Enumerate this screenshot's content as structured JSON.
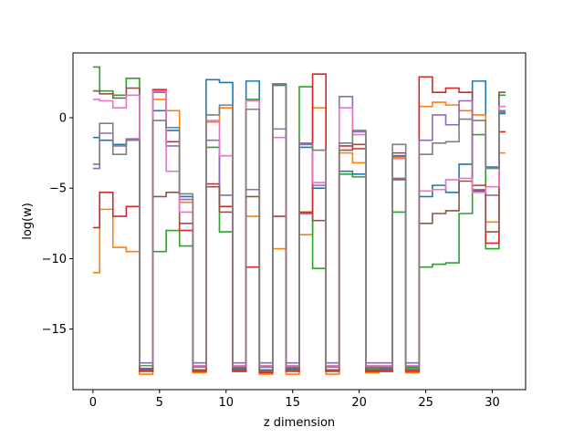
{
  "chart_data": {
    "type": "line",
    "drawstyle": "steps-mid",
    "title": "",
    "xlabel": "z dimension",
    "ylabel": "log(w)",
    "xlim": [
      -1.5,
      32.5
    ],
    "ylim": [
      -19.3,
      4.6
    ],
    "xticks": [
      0,
      5,
      10,
      15,
      20,
      25,
      30
    ],
    "yticks": [
      -15,
      -10,
      -5,
      0
    ],
    "ytick_labels": [
      "−15",
      "−10",
      "−5",
      "0"
    ],
    "grid": false,
    "legend": "none",
    "x": [
      0,
      1,
      2,
      3,
      4,
      5,
      6,
      7,
      8,
      9,
      10,
      11,
      12,
      13,
      14,
      15,
      16,
      17,
      18,
      19,
      20,
      21,
      22,
      23,
      24,
      25,
      26,
      27,
      28,
      29,
      30,
      31
    ],
    "series": [
      {
        "color": "#1f77b4",
        "values": [
          -1.4,
          -1.6,
          -1.9,
          -1.6,
          -17.8,
          0.5,
          -0.9,
          -5.6,
          -17.9,
          2.7,
          2.5,
          -17.8,
          2.6,
          -17.9,
          2.3,
          -17.8,
          -2.1,
          -5.0,
          -17.9,
          -3.8,
          -4.0,
          -18.0,
          -17.8,
          -2.7,
          -17.8,
          -5.6,
          -4.8,
          -5.3,
          -3.3,
          2.6,
          -3.5,
          0.3
        ]
      },
      {
        "color": "#ff7f0e",
        "values": [
          -11.0,
          -6.5,
          -9.2,
          -9.5,
          -18.2,
          1.3,
          0.5,
          -6.0,
          -18.1,
          -0.3,
          0.7,
          -18.0,
          -7.0,
          -18.2,
          -9.3,
          -18.2,
          -8.3,
          0.7,
          -18.2,
          -2.5,
          -3.2,
          -18.1,
          -18.0,
          -2.8,
          -18.1,
          0.8,
          1.1,
          0.9,
          0.5,
          0.2,
          -7.4,
          -2.5
        ]
      },
      {
        "color": "#2ca02c",
        "values": [
          3.6,
          1.9,
          1.6,
          2.8,
          -17.6,
          -9.5,
          -8.0,
          -9.1,
          -17.6,
          -2.1,
          -8.1,
          -17.7,
          1.3,
          -17.7,
          2.3,
          -17.6,
          2.2,
          -10.7,
          -17.6,
          -4.0,
          -4.2,
          -17.8,
          -17.6,
          -6.7,
          -17.7,
          -10.6,
          -10.4,
          -10.3,
          -6.8,
          -1.2,
          -9.3,
          1.6
        ]
      },
      {
        "color": "#d62728",
        "values": [
          -7.8,
          -5.3,
          -7.0,
          -6.3,
          -18.0,
          2.0,
          -1.7,
          -8.0,
          -18.0,
          -4.7,
          -6.3,
          -18.0,
          -10.6,
          -18.1,
          -7.0,
          -18.0,
          -6.7,
          3.1,
          -18.0,
          -2.0,
          -2.2,
          -18.0,
          -18.0,
          -2.5,
          -18.0,
          2.9,
          1.8,
          2.1,
          1.8,
          -4.8,
          -8.9,
          -1.0
        ]
      },
      {
        "color": "#9467bd",
        "values": [
          -3.6,
          -1.1,
          -2.0,
          -1.5,
          -17.4,
          1.8,
          -2.0,
          -5.8,
          -17.4,
          -1.6,
          -5.5,
          -17.4,
          -5.1,
          -17.4,
          -0.8,
          -17.4,
          -1.8,
          -4.8,
          -17.4,
          1.5,
          -1.0,
          -17.4,
          -17.4,
          -4.3,
          -17.4,
          -1.6,
          0.2,
          -0.5,
          1.2,
          -5.1,
          -5.5,
          0.4
        ]
      },
      {
        "color": "#8c564b",
        "values": [
          1.9,
          1.7,
          1.4,
          2.1,
          -17.9,
          -5.6,
          -5.3,
          -7.5,
          -17.9,
          -4.9,
          -6.7,
          -17.9,
          -5.6,
          -18.0,
          2.4,
          -17.9,
          -6.8,
          -7.3,
          -17.9,
          -2.3,
          -1.9,
          -17.9,
          -17.9,
          -4.4,
          -17.9,
          -7.5,
          -6.8,
          -6.6,
          -4.5,
          -5.2,
          -8.1,
          1.8
        ]
      },
      {
        "color": "#e377c2",
        "values": [
          1.3,
          1.2,
          0.7,
          1.6,
          -17.6,
          1.9,
          -3.8,
          -6.7,
          -17.6,
          -0.2,
          -2.7,
          -17.6,
          1.2,
          -17.6,
          -1.4,
          -17.6,
          -1.9,
          -4.6,
          -17.6,
          0.7,
          -1.2,
          -17.6,
          -17.6,
          -2.9,
          -17.6,
          -5.2,
          -5.1,
          -4.4,
          -4.3,
          -5.3,
          -4.9,
          0.8
        ]
      },
      {
        "color": "#7f7f7f",
        "values": [
          -3.3,
          -0.4,
          -2.6,
          -1.6,
          -17.6,
          -0.2,
          -0.7,
          -5.4,
          -17.7,
          0.2,
          0.9,
          -17.7,
          0.6,
          -17.7,
          2.4,
          -17.7,
          -1.9,
          -2.3,
          -17.7,
          -1.8,
          -0.9,
          -17.7,
          -17.7,
          -1.9,
          -17.8,
          -2.6,
          -1.8,
          -1.7,
          -0.1,
          -0.2,
          -3.6,
          0.5
        ]
      }
    ]
  }
}
